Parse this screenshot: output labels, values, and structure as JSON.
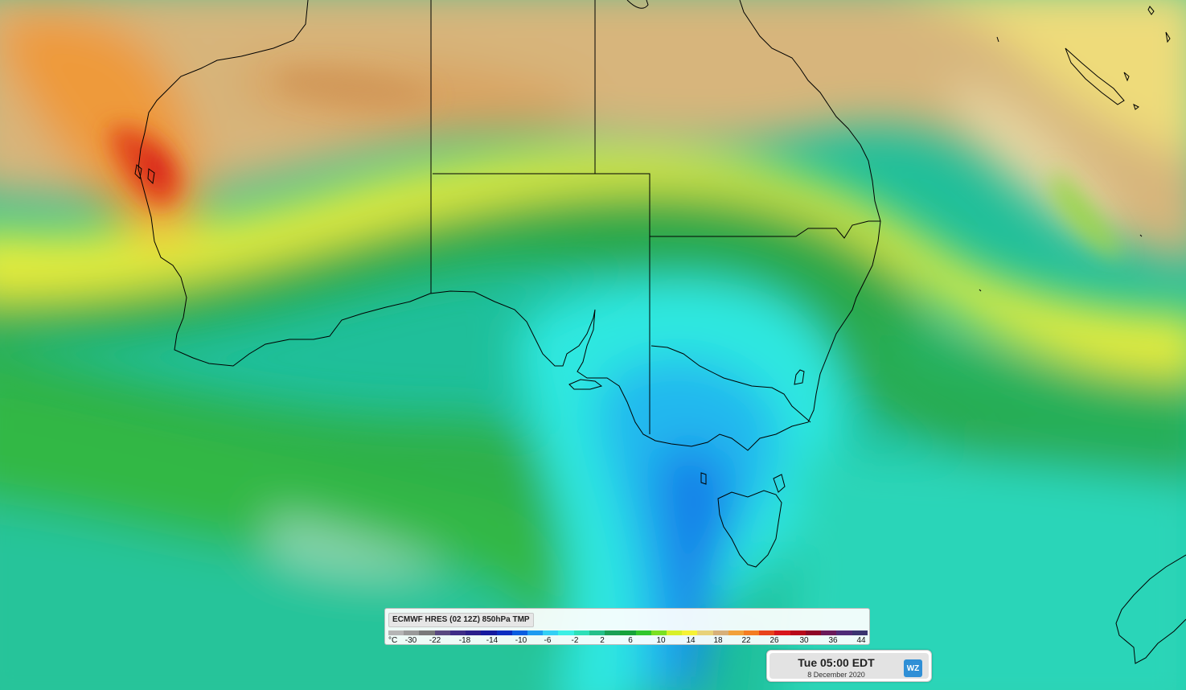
{
  "legend": {
    "title": "ECMWF HRES (02 12Z) 850hPa TMP",
    "unit": "°C",
    "ticks": [
      "-30",
      "-22",
      "-18",
      "-14",
      "-10",
      "-6",
      "-2",
      "2",
      "6",
      "10",
      "14",
      "18",
      "22",
      "26",
      "30",
      "36",
      "44"
    ],
    "colors": [
      "#b5b5b5",
      "#9a9a9a",
      "#7a7a7a",
      "#5a4a80",
      "#3e2d87",
      "#2a1f8a",
      "#141a9e",
      "#0a2ec0",
      "#0a5ee0",
      "#1e9bf0",
      "#33d0f5",
      "#3cf0e5",
      "#2ee0b8",
      "#25c08a",
      "#1aa055",
      "#16a33a",
      "#31c72c",
      "#7be022",
      "#d8f02a",
      "#f6f236",
      "#e8d27a",
      "#d7b07a",
      "#f2a13a",
      "#f47d23",
      "#e8431c",
      "#d8161c",
      "#b8081a",
      "#8e0626",
      "#6b1a5a",
      "#4f2b77",
      "#3b3470"
    ]
  },
  "timestamp": {
    "time": "Tue 05:00 EDT",
    "date": "8 December 2020",
    "logo": "WZ"
  }
}
